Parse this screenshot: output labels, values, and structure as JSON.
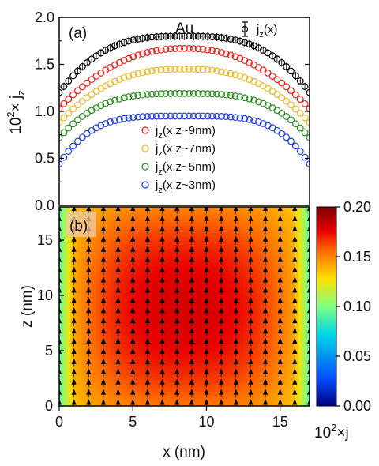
{
  "figure": {
    "panel_a_letter": "(a)",
    "panel_b_letter": "(b)",
    "material": "Au",
    "legend_top_label": "j",
    "legend_top_sub": "z",
    "legend_top_suffix": "(x)",
    "ylabel_prefix": "10",
    "ylabel_exp": "2",
    "ylabel_times": "× j",
    "ylabel_sub": "z",
    "zlabel": "z (nm)",
    "xlabel": "x (nm)",
    "colorbar_label_prefix": "10",
    "colorbar_label_exp": "2",
    "colorbar_label_suffix": "×j"
  },
  "chart_data": [
    {
      "type": "scatter",
      "panel": "(a)",
      "title": "Au",
      "xlim": [
        0,
        17
      ],
      "ylim": [
        0,
        2.0
      ],
      "ylabel": "10^2 × j_z",
      "yticks": [
        "0.0",
        "0.5",
        "1.0",
        "1.5",
        "2.0"
      ],
      "series": [
        {
          "name": "j_z(x)",
          "color": "#000000",
          "errorbars": true,
          "edge": 1.2,
          "peak": 1.8,
          "flat": 3.0
        },
        {
          "name": "j_z(x,z~9nm)",
          "color": "#e0201c",
          "edge": 1.03,
          "peak": 1.67,
          "flat": 2.2
        },
        {
          "name": "j_z(x,z~7nm)",
          "color": "#e8b830",
          "edge": 0.88,
          "peak": 1.45,
          "flat": 2.5
        },
        {
          "name": "j_z(x,z~5nm)",
          "color": "#2a8a20",
          "edge": 0.72,
          "peak": 1.19,
          "flat": 3.2
        },
        {
          "name": "j_z(x,z~3nm)",
          "color": "#1f3fd8",
          "edge": 0.44,
          "peak": 0.95,
          "flat": 4.0
        }
      ],
      "legend": [
        {
          "main": "j",
          "sub": "z",
          "rest": "(x,z~9nm)",
          "color": "#e0201c"
        },
        {
          "main": "j",
          "sub": "z",
          "rest": "(x,z~7nm)",
          "color": "#e8b830"
        },
        {
          "main": "j",
          "sub": "z",
          "rest": "(x,z~5nm)",
          "color": "#2a8a20"
        },
        {
          "main": "j",
          "sub": "z",
          "rest": "(x,z~3nm)",
          "color": "#1f3fd8"
        }
      ]
    },
    {
      "type": "heatmap",
      "panel": "(b)",
      "xlabel": "x (nm)",
      "ylabel": "z (nm)",
      "xlim": [
        0,
        17
      ],
      "ylim": [
        0,
        18
      ],
      "xticks": [
        "0",
        "5",
        "10",
        "15"
      ],
      "yticks": [
        "0",
        "5",
        "10",
        "15"
      ],
      "colorbar": {
        "min": 0.0,
        "max": 0.2,
        "ticks": [
          "0.00",
          "0.05",
          "0.10",
          "0.15",
          "0.20"
        ],
        "label": "10^2×j",
        "colors": [
          "#00007f",
          "#0050ff",
          "#00d8e8",
          "#7fff80",
          "#ffe000",
          "#ff6a00",
          "#e80000",
          "#7f0000"
        ]
      },
      "vector_field": "arrows pointing +z on a regular grid"
    }
  ]
}
